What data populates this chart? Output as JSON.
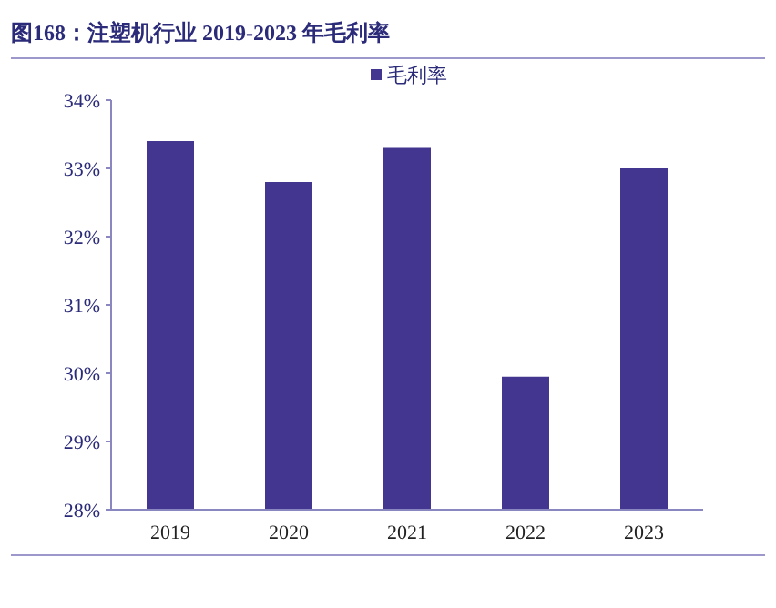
{
  "chart_data": {
    "type": "bar",
    "title": "图168：注塑机行业 2019-2023 年毛利率",
    "categories": [
      "2019",
      "2020",
      "2021",
      "2022",
      "2023"
    ],
    "series": [
      {
        "name": "毛利率",
        "color": "#433691",
        "values": [
          33.4,
          32.8,
          33.3,
          29.95,
          33.0
        ]
      }
    ],
    "ylim": [
      28,
      34
    ],
    "yticks": [
      {
        "value": 28,
        "label": "28%"
      },
      {
        "value": 29,
        "label": "29%"
      },
      {
        "value": 30,
        "label": "30%"
      },
      {
        "value": 31,
        "label": "31%"
      },
      {
        "value": 32,
        "label": "32%"
      },
      {
        "value": 33,
        "label": "33%"
      },
      {
        "value": 34,
        "label": "34%"
      }
    ],
    "legend": "top"
  }
}
